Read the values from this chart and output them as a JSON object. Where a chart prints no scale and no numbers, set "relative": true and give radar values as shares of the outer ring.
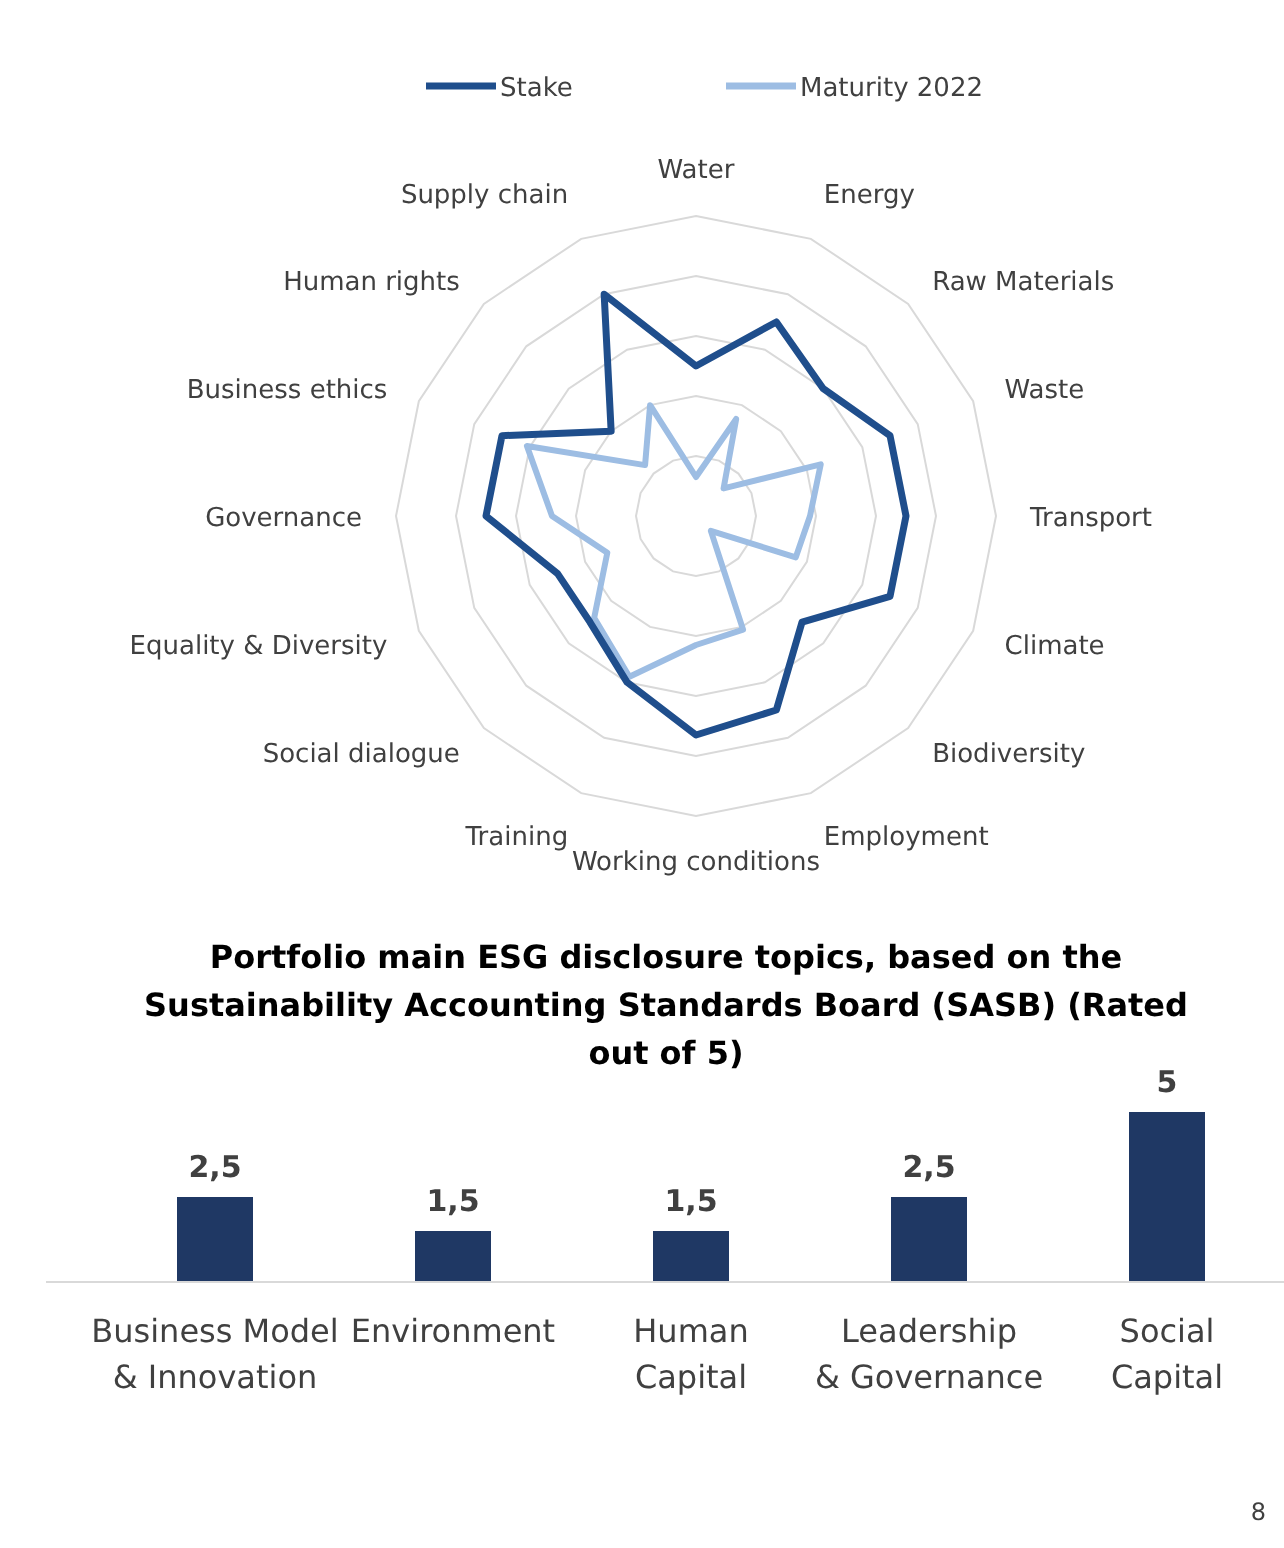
{
  "chart_data": [
    {
      "type": "radar",
      "relative": true,
      "legend": "top",
      "grid": true,
      "categories": [
        "Water",
        "Energy",
        "Raw Materials",
        "Waste",
        "Transport",
        "Climate",
        "Biodiversity",
        "Employment",
        "Working conditions",
        "Training",
        "Social dialogue",
        "Equality & Diversity",
        "Governance",
        "Business ethics",
        "Human rights",
        "Supply chain"
      ],
      "series": [
        {
          "name": "Stake",
          "color": "#1f4e8c",
          "values": [
            0.5,
            0.7,
            0.6,
            0.7,
            0.7,
            0.7,
            0.5,
            0.7,
            0.73,
            0.6,
            0.5,
            0.5,
            0.7,
            0.7,
            0.4,
            0.8
          ]
        },
        {
          "name": "Maturity 2022",
          "color": "#9dbde3",
          "values": [
            0.13,
            0.35,
            0.13,
            0.45,
            0.38,
            0.36,
            0.07,
            0.41,
            0.43,
            0.58,
            0.48,
            0.32,
            0.48,
            0.61,
            0.24,
            0.4
          ]
        }
      ]
    },
    {
      "type": "bar",
      "title": "Portfolio main ESG disclosure topics, based on the Sustainability Accounting Standards Board (SASB) (Rated out of 5)",
      "categories": [
        "Business Model & Innovation",
        "Environment",
        "Human Capital",
        "Leadership & Governance",
        "Social Capital"
      ],
      "values": [
        2.5,
        1.5,
        1.5,
        2.5,
        5
      ],
      "value_labels": [
        "2,5",
        "1,5",
        "1,5",
        "2,5",
        "5"
      ],
      "color": "#1f3864",
      "annotations": [
        "8"
      ]
    }
  ]
}
